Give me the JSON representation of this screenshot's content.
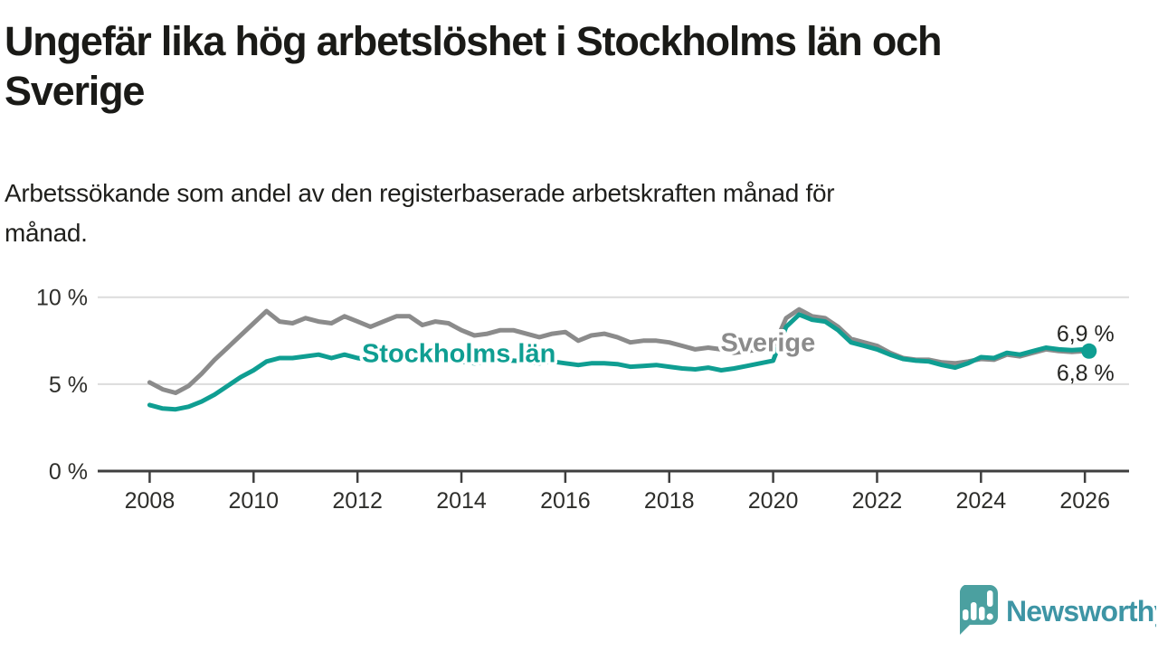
{
  "header": {
    "title_line1": "Ungefär lika hög arbetslöshet i Stockholms län och",
    "title_line2": "Sverige",
    "subtitle_line1": "Arbetssökande som andel av den registerbaserade arbetskraften månad för",
    "subtitle_line2": "månad."
  },
  "chart_data": {
    "type": "line",
    "title": "Ungefär lika hög arbetslöshet i Stockholms län och Sverige",
    "subtitle": "Arbetssökande som andel av den registerbaserade arbetskraften månad för månad.",
    "unit": "percent of registered labour force",
    "grid": "horizontal",
    "legend_position": "inline-labels-on-lines",
    "xlim": [
      2007,
      2026.85
    ],
    "ylim": [
      0,
      10.4
    ],
    "x_ticks": [
      2008,
      2010,
      2012,
      2014,
      2016,
      2018,
      2020,
      2022,
      2024,
      2026
    ],
    "y_ticks": [
      {
        "value": 0,
        "label": "0 %"
      },
      {
        "value": 5,
        "label": "5 %"
      },
      {
        "value": 10,
        "label": "10 %"
      }
    ],
    "x": [
      2008,
      2008.25,
      2008.5,
      2008.75,
      2009,
      2009.25,
      2009.5,
      2009.75,
      2010,
      2010.25,
      2010.5,
      2010.75,
      2011,
      2011.25,
      2011.5,
      2011.75,
      2012,
      2012.25,
      2012.5,
      2012.75,
      2013,
      2013.25,
      2013.5,
      2013.75,
      2014,
      2014.25,
      2014.5,
      2014.75,
      2015,
      2015.25,
      2015.5,
      2015.75,
      2016,
      2016.25,
      2016.5,
      2016.75,
      2017,
      2017.25,
      2017.5,
      2017.75,
      2018,
      2018.25,
      2018.5,
      2018.75,
      2019,
      2019.25,
      2019.5,
      2019.75,
      2020,
      2020.25,
      2020.5,
      2020.75,
      2021,
      2021.25,
      2021.5,
      2021.75,
      2022,
      2022.25,
      2022.5,
      2022.75,
      2023,
      2023.25,
      2023.5,
      2023.75,
      2024,
      2024.25,
      2024.5,
      2024.75,
      2025,
      2025.25,
      2025.5,
      2025.75,
      2026,
      2026.08
    ],
    "series": [
      {
        "name": "Sverige",
        "color": "#8b8b8b",
        "end_label": "6,8 %",
        "end_dot": false,
        "values": [
          5.1,
          4.7,
          4.5,
          4.9,
          5.6,
          6.4,
          7.1,
          7.8,
          8.5,
          9.2,
          8.6,
          8.5,
          8.8,
          8.6,
          8.5,
          8.9,
          8.6,
          8.3,
          8.6,
          8.9,
          8.9,
          8.4,
          8.6,
          8.5,
          8.1,
          7.8,
          7.9,
          8.1,
          8.1,
          7.9,
          7.7,
          7.9,
          8.0,
          7.5,
          7.8,
          7.9,
          7.7,
          7.4,
          7.5,
          7.5,
          7.4,
          7.2,
          7.0,
          7.1,
          7.0,
          6.8,
          6.9,
          7.0,
          7.1,
          8.8,
          9.3,
          8.9,
          8.8,
          8.3,
          7.6,
          7.4,
          7.2,
          6.8,
          6.5,
          6.4,
          6.4,
          6.25,
          6.2,
          6.3,
          6.45,
          6.4,
          6.7,
          6.6,
          6.8,
          7.0,
          6.9,
          6.85,
          6.9,
          6.8
        ]
      },
      {
        "name": "Stockholms län",
        "color": "#0f9e92",
        "end_label": "6,9 %",
        "end_dot": true,
        "values": [
          3.8,
          3.6,
          3.55,
          3.7,
          4.0,
          4.4,
          4.9,
          5.4,
          5.8,
          6.3,
          6.5,
          6.5,
          6.6,
          6.7,
          6.5,
          6.7,
          6.5,
          6.4,
          6.5,
          6.6,
          6.6,
          6.5,
          6.5,
          6.4,
          6.3,
          6.2,
          6.3,
          6.4,
          6.35,
          6.3,
          6.2,
          6.3,
          6.2,
          6.1,
          6.2,
          6.2,
          6.15,
          6.0,
          6.05,
          6.1,
          6.0,
          5.9,
          5.85,
          5.95,
          5.8,
          5.9,
          6.05,
          6.2,
          6.35,
          8.3,
          9.0,
          8.7,
          8.6,
          8.1,
          7.4,
          7.2,
          7.0,
          6.7,
          6.45,
          6.35,
          6.3,
          6.1,
          5.95,
          6.2,
          6.55,
          6.5,
          6.8,
          6.7,
          6.9,
          7.1,
          7.0,
          6.95,
          7.0,
          6.9
        ]
      }
    ],
    "inline_labels": [
      {
        "text": "Stockholms län",
        "x": 2013.95,
        "y": 6.78,
        "color": "#0f9e92"
      },
      {
        "text": "Sverige",
        "x": 2019.9,
        "y": 7.42,
        "color": "#8b8b8b"
      }
    ],
    "colors": {
      "gridline": "#dcdcdc",
      "axis": "#3f3f3f",
      "tick_text": "#2e2e2b"
    }
  },
  "branding": {
    "name": "Newsworthy",
    "text_color": "#3e95a5",
    "bubble_color": "#4ba0a0"
  }
}
